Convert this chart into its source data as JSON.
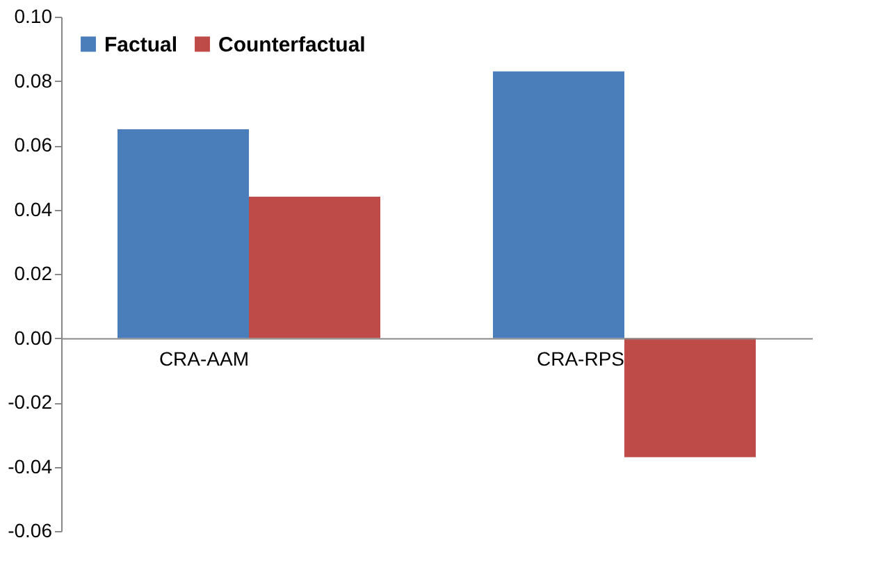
{
  "chart_data": {
    "type": "bar",
    "categories": [
      "CRA-AAM",
      "CRA-RPS"
    ],
    "series": [
      {
        "name": "Factual",
        "color": "#4a7ebb",
        "values": [
          0.065,
          0.083
        ]
      },
      {
        "name": "Counterfactual",
        "color": "#be4b48",
        "values": [
          0.044,
          -0.037
        ]
      }
    ],
    "ylim": [
      -0.06,
      0.1
    ],
    "yticks": [
      {
        "value": -0.06,
        "label": "-0.06"
      },
      {
        "value": -0.04,
        "label": "-0.04"
      },
      {
        "value": -0.02,
        "label": "-0.02"
      },
      {
        "value": 0,
        "label": "0.00"
      },
      {
        "value": 0.02,
        "label": "0.02"
      },
      {
        "value": 0.04,
        "label": "0.04"
      },
      {
        "value": 0.06,
        "label": "0.06"
      },
      {
        "value": 0.08,
        "label": "0.08"
      },
      {
        "value": 0.1,
        "label": "0.10"
      }
    ],
    "grid": false,
    "legend": "top left"
  }
}
